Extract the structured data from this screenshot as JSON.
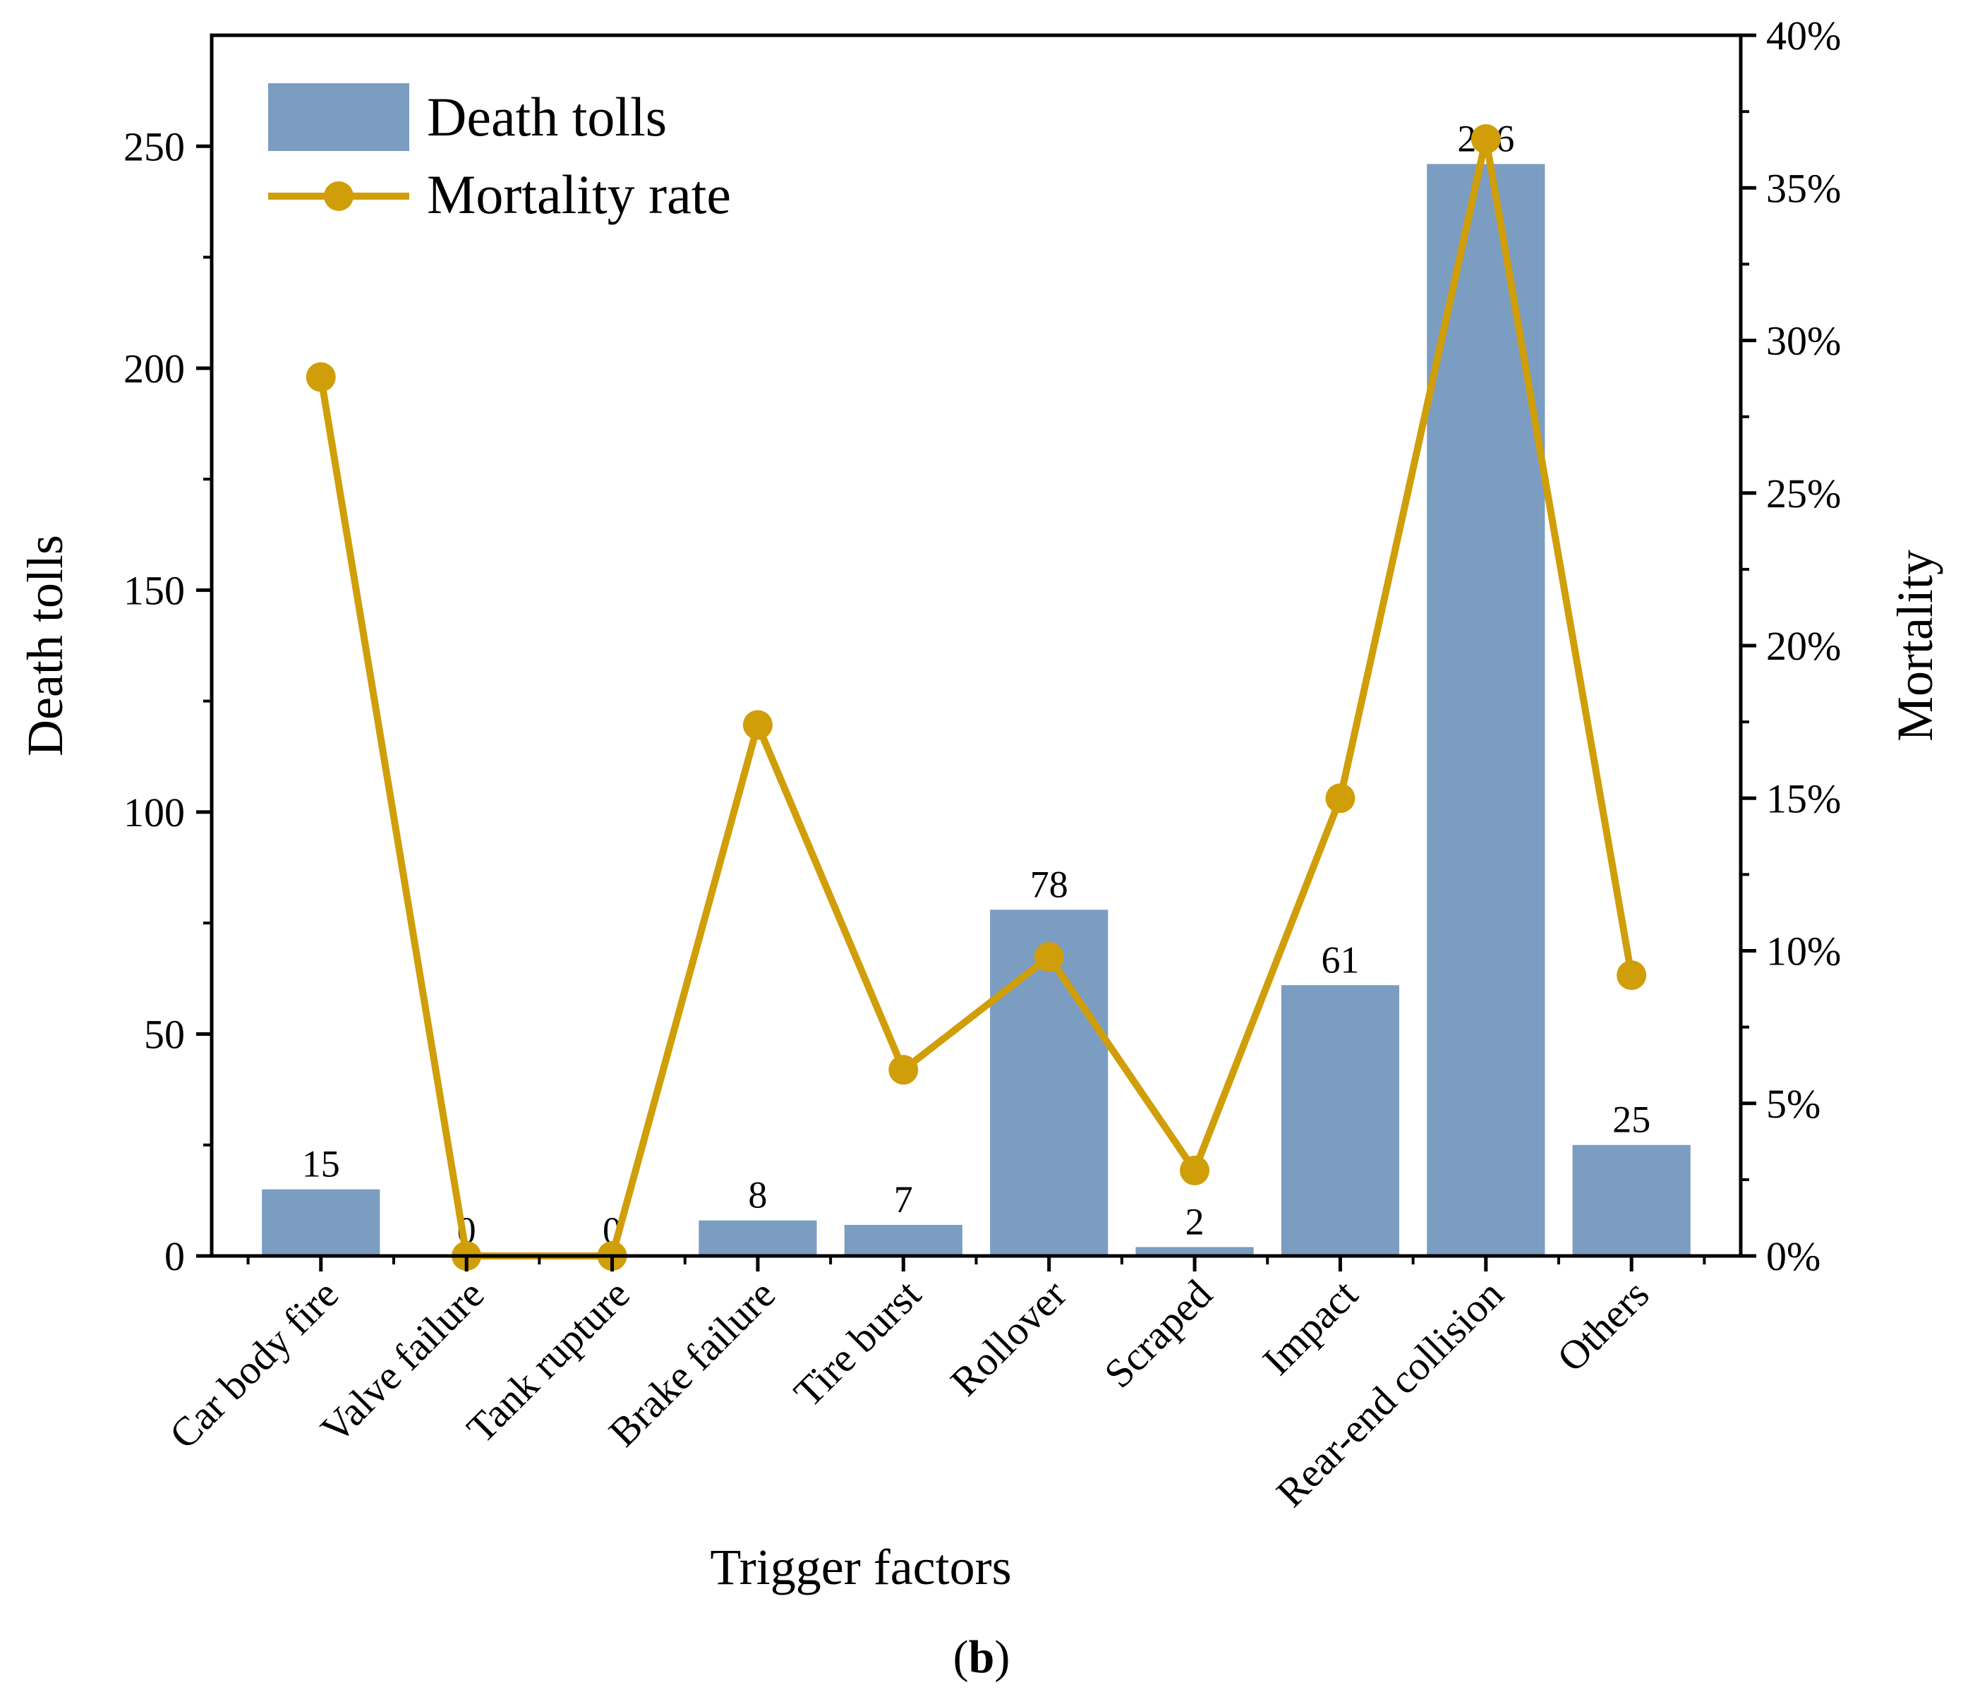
{
  "chart_data": {
    "type": "bar",
    "categories": [
      "Car body fire",
      "Valve failure",
      "Tank rupture",
      "Brake failure",
      "Tire burst",
      "Rollover",
      "Scraped",
      "Impact",
      "Rear-end collision",
      "Others"
    ],
    "series": [
      {
        "name": "Death tolls",
        "type": "bar",
        "axis": "left",
        "color": "#7b9dc1",
        "values": [
          15,
          0,
          0,
          8,
          7,
          78,
          2,
          61,
          246,
          25
        ],
        "labels": [
          "15",
          "0",
          "0",
          "8",
          "7",
          "78",
          "2",
          "61",
          "246",
          "25"
        ]
      },
      {
        "name": "Mortality rate",
        "type": "line",
        "axis": "right",
        "color": "#d09e08",
        "values": [
          28.8,
          0,
          0,
          17.4,
          6.1,
          9.8,
          2.8,
          15.0,
          36.6,
          9.2
        ]
      }
    ],
    "xlabel": "Trigger factors",
    "ylabel": "Death tolls",
    "y2label": "Mortality",
    "ylim": [
      0,
      275
    ],
    "y2lim": [
      0,
      40
    ],
    "yticks": [
      0,
      50,
      100,
      150,
      200,
      250
    ],
    "y2ticks": [
      "0%",
      "5%",
      "10%",
      "15%",
      "20%",
      "25%",
      "30%",
      "35%",
      "40%"
    ],
    "legend": {
      "placement": "top-left",
      "entries": [
        "Death tolls",
        "Mortality rate"
      ]
    },
    "grid": false
  },
  "caption": {
    "open": "(",
    "letter": "b",
    "close": ")"
  }
}
